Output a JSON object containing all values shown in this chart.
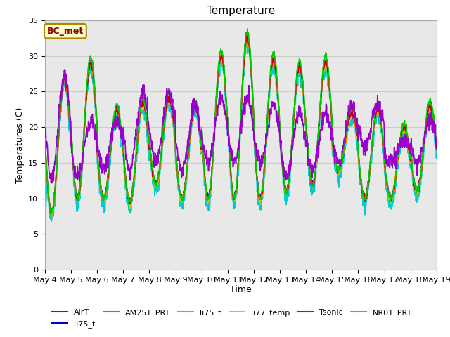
{
  "title": "Temperature",
  "xlabel": "Time",
  "ylabel": "Temperatures (C)",
  "ylim": [
    0,
    35
  ],
  "x_tick_labels": [
    "May 4",
    "May 5",
    "May 6",
    "May 7",
    "May 8",
    "May 9",
    "May 10",
    "May 11",
    "May 12",
    "May 13",
    "May 14",
    "May 15",
    "May 16",
    "May 17",
    "May 18",
    "May 19"
  ],
  "series": [
    {
      "label": "AirT",
      "color": "#cc0000",
      "lw": 1.2,
      "zorder": 4
    },
    {
      "label": "li75_t",
      "color": "#0000cc",
      "lw": 1.2,
      "zorder": 3
    },
    {
      "label": "AM25T_PRT",
      "color": "#00cc00",
      "lw": 1.2,
      "zorder": 5
    },
    {
      "label": "li75_t",
      "color": "#ff8800",
      "lw": 1.2,
      "zorder": 3
    },
    {
      "label": "li77_temp",
      "color": "#cccc00",
      "lw": 1.2,
      "zorder": 3
    },
    {
      "label": "Tsonic",
      "color": "#9900cc",
      "lw": 1.2,
      "zorder": 6
    },
    {
      "label": "NR01_PRT",
      "color": "#00cccc",
      "lw": 1.2,
      "zorder": 2
    }
  ],
  "annotation_text": "BC_met",
  "annotation_bg": "#ffffcc",
  "annotation_border": "#aa8800",
  "grid_color": "#cccccc",
  "plot_bg": "#e8e8e8",
  "title_fontsize": 11,
  "label_fontsize": 9,
  "tick_fontsize": 8,
  "legend_fontsize": 8,
  "peak_temps": [
    27,
    29,
    22.5,
    23.5,
    24,
    23,
    30,
    32.5,
    29.5,
    28.5,
    29,
    22,
    22.5,
    20,
    23
  ],
  "trough_temps": [
    8,
    10,
    10,
    9.5,
    12,
    10,
    10,
    10,
    10,
    11,
    12,
    14,
    10,
    10,
    11
  ],
  "tsonic_peaks": [
    27,
    21,
    21,
    25,
    25,
    23,
    24,
    24,
    23,
    22,
    22,
    23,
    23,
    18,
    21
  ],
  "tsonic_troughs": [
    13,
    13,
    14,
    14,
    15,
    14,
    15,
    15,
    15,
    13,
    14,
    15,
    17,
    15,
    15
  ],
  "ndays": 15,
  "n_points": 1500
}
